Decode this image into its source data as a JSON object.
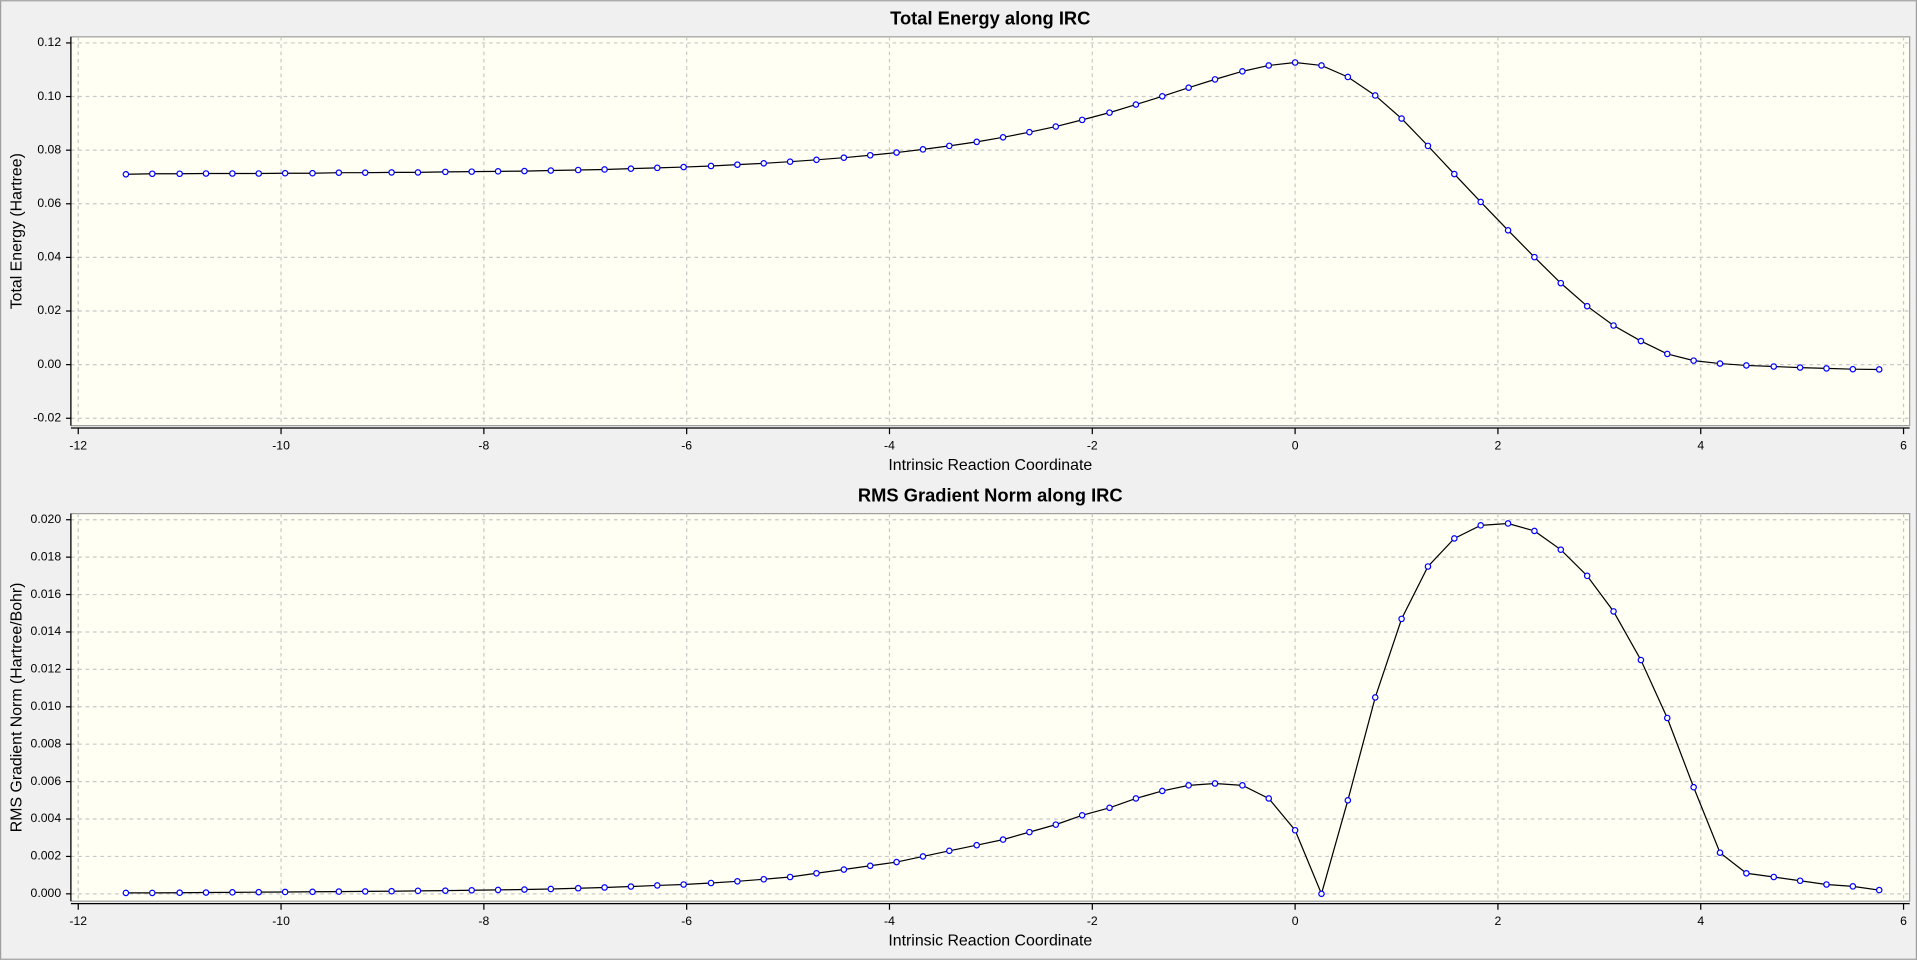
{
  "chart_data": [
    {
      "type": "line",
      "title": "Total Energy along IRC",
      "xlabel": "Intrinsic Reaction Coordinate",
      "ylabel": "Total Energy (Hartree)",
      "x": [
        -11.53,
        -11.27,
        -11.0,
        -10.74,
        -10.48,
        -10.22,
        -9.96,
        -9.69,
        -9.43,
        -9.17,
        -8.91,
        -8.65,
        -8.38,
        -8.12,
        -7.86,
        -7.6,
        -7.34,
        -7.07,
        -6.81,
        -6.55,
        -6.29,
        -6.03,
        -5.76,
        -5.5,
        -5.24,
        -4.98,
        -4.72,
        -4.45,
        -4.19,
        -3.93,
        -3.67,
        -3.41,
        -3.14,
        -2.88,
        -2.62,
        -2.36,
        -2.1,
        -1.83,
        -1.57,
        -1.31,
        -1.05,
        -0.79,
        -0.52,
        -0.26,
        0,
        0.26,
        0.52,
        0.79,
        1.05,
        1.31,
        1.57,
        1.83,
        2.1,
        2.36,
        2.62,
        2.88,
        3.14,
        3.41,
        3.67,
        3.93,
        4.19,
        4.45,
        4.72,
        4.98,
        5.24,
        5.5,
        5.76
      ],
      "values": [
        0.071,
        0.0712,
        0.0712,
        0.0713,
        0.0713,
        0.0713,
        0.0714,
        0.0714,
        0.0716,
        0.0716,
        0.0717,
        0.0717,
        0.0719,
        0.072,
        0.0721,
        0.0722,
        0.0724,
        0.0726,
        0.0728,
        0.0731,
        0.0734,
        0.0737,
        0.0741,
        0.0746,
        0.0751,
        0.0757,
        0.0764,
        0.0772,
        0.0781,
        0.0791,
        0.0803,
        0.0816,
        0.0831,
        0.0848,
        0.0867,
        0.0888,
        0.0913,
        0.094,
        0.097,
        0.1001,
        0.1033,
        0.1064,
        0.1094,
        0.1116,
        0.1127,
        0.1116,
        0.1073,
        0.1004,
        0.0918,
        0.0816,
        0.0711,
        0.0607,
        0.0501,
        0.0401,
        0.0304,
        0.0218,
        0.0146,
        0.0088,
        0.004,
        0.0015,
        0.0004,
        -0.0003,
        -0.0007,
        -0.0011,
        -0.0014,
        -0.0017,
        -0.0018
      ],
      "color": "#000000",
      "marker_color": "#0000ff",
      "grid": true,
      "xlim": [
        -12,
        6
      ],
      "xticks": [
        -12,
        -10,
        -8,
        -6,
        -4,
        -2,
        0,
        2,
        4,
        6
      ],
      "ylim": [
        -0.02,
        0.12
      ],
      "yticks": [
        0.12,
        {
          "value": 0.1,
          "label": "0.10"
        },
        0.08,
        0.06,
        0.04,
        0.02,
        {
          "value": 0,
          "label": "0.00"
        },
        -0.02
      ]
    },
    {
      "type": "line",
      "title": "RMS Gradient Norm along IRC",
      "xlabel": "Intrinsic Reaction Coordinate",
      "ylabel": "RMS Gradient Norm (Hartree/Bohr)",
      "x": [
        -11.53,
        -11.27,
        -11.0,
        -10.74,
        -10.48,
        -10.22,
        -9.96,
        -9.69,
        -9.43,
        -9.17,
        -8.91,
        -8.65,
        -8.38,
        -8.12,
        -7.86,
        -7.6,
        -7.34,
        -7.07,
        -6.81,
        -6.55,
        -6.29,
        -6.03,
        -5.76,
        -5.5,
        -5.24,
        -4.98,
        -4.72,
        -4.45,
        -4.19,
        -3.93,
        -3.67,
        -3.41,
        -3.14,
        -2.88,
        -2.62,
        -2.36,
        -2.1,
        -1.83,
        -1.57,
        -1.31,
        -1.05,
        -0.79,
        -0.52,
        -0.26,
        0,
        0.26,
        0.52,
        0.79,
        1.05,
        1.31,
        1.57,
        1.83,
        2.1,
        2.36,
        2.62,
        2.88,
        3.14,
        3.41,
        3.67,
        3.93,
        4.19,
        4.45,
        4.72,
        4.98,
        5.24,
        5.5,
        5.76
      ],
      "values": [
        5e-05,
        5e-05,
        6e-05,
        7e-05,
        8e-05,
        9e-05,
        0.0001,
        0.00011,
        0.00012,
        0.00013,
        0.00014,
        0.00016,
        0.00017,
        0.00019,
        0.00021,
        0.00023,
        0.00026,
        0.0003,
        0.00034,
        0.00039,
        0.00045,
        0.0005,
        0.00058,
        0.00067,
        0.00078,
        0.0009,
        0.0011,
        0.0013,
        0.0015,
        0.0017,
        0.002,
        0.0023,
        0.0026,
        0.0029,
        0.0033,
        0.0037,
        0.0042,
        0.0046,
        0.0051,
        0.0055,
        0.0058,
        0.0059,
        0.0058,
        0.0051,
        0.0034,
        0.0,
        0.005,
        0.0105,
        0.0147,
        0.0175,
        0.019,
        0.0197,
        0.0198,
        0.0194,
        0.0184,
        0.017,
        0.0151,
        0.0125,
        0.0094,
        0.0057,
        0.0022,
        0.0011,
        0.0009,
        0.0007,
        0.0005,
        0.0004,
        0.0002
      ],
      "color": "#000000",
      "marker_color": "#0000ff",
      "grid": true,
      "xlim": [
        -12,
        6
      ],
      "xticks": [
        -12,
        -10,
        -8,
        -6,
        -4,
        -2,
        0,
        2,
        4,
        6
      ],
      "ylim": [
        0,
        0.02
      ],
      "yticks": [
        {
          "value": 0.02,
          "label": "0.020"
        },
        0.018,
        0.016,
        0.014,
        0.012,
        {
          "value": 0.01,
          "label": "0.010"
        },
        0.008,
        0.006,
        0.004,
        0.002,
        {
          "value": 0,
          "label": "0.000"
        }
      ]
    }
  ]
}
